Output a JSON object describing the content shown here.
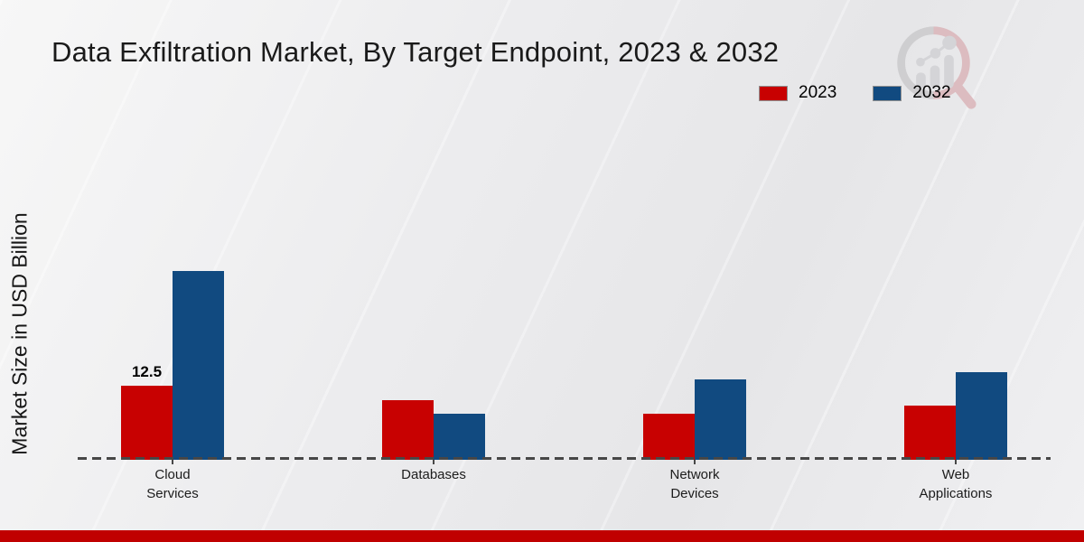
{
  "branding": {
    "logo": "magnifier-bar-chart-watermark",
    "accent_bar_color": "#c00000"
  },
  "chart_data": {
    "type": "bar",
    "title": "Data Exfiltration Market, By Target Endpoint, 2023 & 2032",
    "ylabel": "Market Size in USD Billion",
    "xlabel": "",
    "categories": [
      "Cloud Services",
      "Databases",
      "Network Devices",
      "Web Applications"
    ],
    "series": [
      {
        "name": "2023",
        "color": "#c80101",
        "values": [
          12.5,
          10.1,
          7.8,
          9.1
        ]
      },
      {
        "name": "2032",
        "color": "#114a80",
        "values": [
          31.9,
          7.7,
          13.5,
          14.8
        ]
      }
    ],
    "bar_labels": [
      {
        "series": "2023",
        "category": "Cloud Services",
        "text": "12.5"
      }
    ],
    "legend_position": "top-right",
    "grid": false,
    "baseline_style": "dashed",
    "ylim": [
      0,
      35
    ],
    "units": "USD Billion"
  }
}
